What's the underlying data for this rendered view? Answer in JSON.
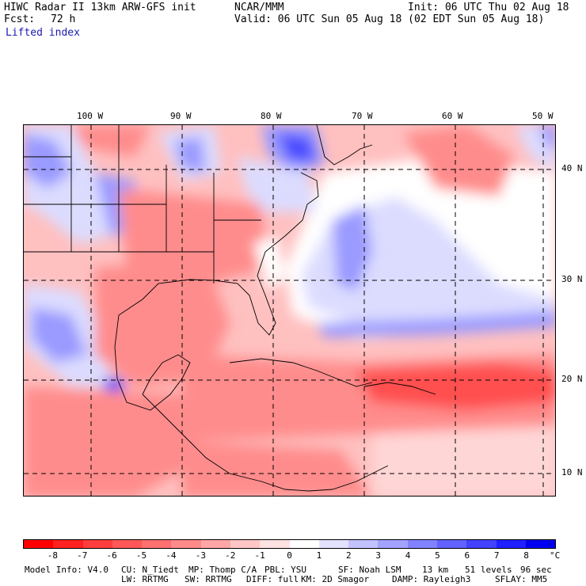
{
  "header": {
    "line1_left": "HIWC Radar II 13km ARW-GFS init",
    "line1_mid": "NCAR/MMM",
    "line1_right": "Init: 06 UTC Thu 02 Aug 18",
    "fcst_label": "Fcst:",
    "fcst_value": "72 h",
    "valid": "Valid: 06 UTC Sun 05 Aug 18 (02 EDT Sun 05 Aug 18)",
    "field": "Lifted index"
  },
  "axes": {
    "lon_labels": [
      "100 W",
      "90 W",
      "80 W",
      "70 W",
      "60 W",
      "50 W"
    ],
    "lat_labels": [
      "40 N",
      "30 N",
      "20 N",
      "10 N"
    ]
  },
  "legend": {
    "ticks": [
      "-8",
      "-7",
      "-6",
      "-5",
      "-4",
      "-3",
      "-2",
      "-1",
      "0",
      "1",
      "2",
      "3",
      "4",
      "5",
      "6",
      "7",
      "8"
    ],
    "unit": "°C",
    "colors": [
      "#ff0000",
      "#ff2020",
      "#ff3e3e",
      "#ff5858",
      "#ff7070",
      "#ff8a8a",
      "#ffa6a6",
      "#ffc6c6",
      "#ffe2e2",
      "#ffffff",
      "#e2e2ff",
      "#c2c2ff",
      "#a2a2ff",
      "#8282ff",
      "#6262ff",
      "#4242ff",
      "#2020ff",
      "#0000ee"
    ]
  },
  "footer": {
    "line1": [
      "Model Info: V4.0",
      "CU: N_Tiedt",
      "MP: Thomp C/A",
      "PBL: YSU",
      "SF: Noah LSM",
      "13 km",
      "51 levels",
      "96 sec"
    ],
    "line2": [
      "LW: RRTMG",
      "SW: RRTMG",
      "DIFF: full",
      "KM: 2D Smagor",
      "DAMP: Rayleigh3",
      "SFLAY: MM5"
    ]
  },
  "map_colors": {
    "base": "#ffc0c0",
    "strong_red": "#ff5050",
    "mid_red": "#ff8c8c",
    "light_red": "#ffd6d6",
    "light_blue": "#dcdcff",
    "mid_blue": "#9a9aff",
    "strong_blue": "#4848ff",
    "white": "#ffffff"
  }
}
